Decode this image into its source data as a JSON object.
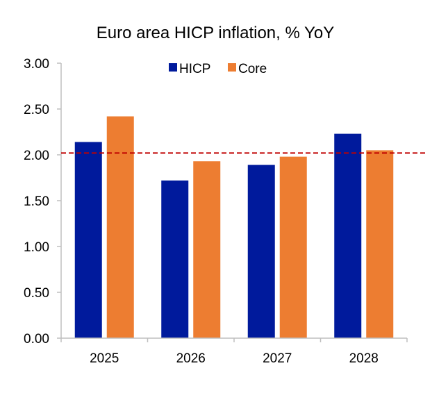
{
  "chart_data": {
    "type": "bar",
    "title": "Euro area HICP inflation, % YoY",
    "categories": [
      "2025",
      "2026",
      "2027",
      "2028"
    ],
    "series": [
      {
        "name": "HICP",
        "values": [
          2.14,
          1.72,
          1.89,
          2.23
        ],
        "color": "#001A9C"
      },
      {
        "name": "Core",
        "values": [
          2.42,
          1.93,
          1.98,
          2.05
        ],
        "color": "#ED7D31"
      }
    ],
    "reference_line": {
      "value": 2.02,
      "color": "#C00000",
      "style": "dashed"
    },
    "ylim": [
      0,
      3
    ],
    "yticks": [
      "0.00",
      "0.50",
      "1.00",
      "1.50",
      "2.00",
      "2.50",
      "3.00"
    ],
    "xlabel": "",
    "ylabel": "",
    "grid": false,
    "legend": "top"
  }
}
